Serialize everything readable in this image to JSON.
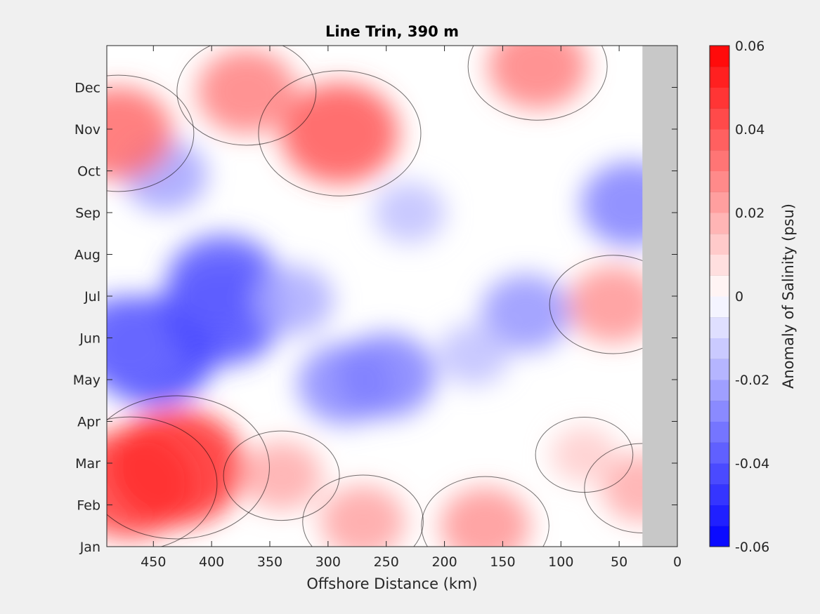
{
  "chart_data": {
    "type": "heatmap",
    "title": "Line Trin, 390 m",
    "xlabel": "Offshore Distance (km)",
    "ylabel": "",
    "x_reversed": true,
    "xlim": [
      0,
      490
    ],
    "x_ticks": [
      450,
      400,
      350,
      300,
      250,
      200,
      150,
      100,
      50,
      0
    ],
    "y_ticks": [
      "Jan",
      "Feb",
      "Mar",
      "Apr",
      "May",
      "Jun",
      "Jul",
      "Aug",
      "Sep",
      "Oct",
      "Nov",
      "Dec"
    ],
    "no_data_region_km": [
      0,
      30
    ],
    "colorbar": {
      "label": "Anomaly of Salinity (psu)",
      "range": [
        -0.06,
        0.06
      ],
      "ticks": [
        "0.06",
        "0.04",
        "0.02",
        "0",
        "-0.02",
        "-0.04",
        "-0.06"
      ],
      "levels": 24,
      "colormap": "blue-white-red",
      "neg_color": "#0000ff",
      "pos_color": "#ff0000",
      "zero_color": "#ffffff"
    },
    "features": [
      {
        "x": 450,
        "month": 4.7,
        "value": -0.045
      },
      {
        "x": 475,
        "month": 4.9,
        "value": -0.035
      },
      {
        "x": 390,
        "month": 5.6,
        "value": -0.042
      },
      {
        "x": 390,
        "month": 6.3,
        "value": -0.038
      },
      {
        "x": 285,
        "month": 3.9,
        "value": -0.028
      },
      {
        "x": 250,
        "month": 4.1,
        "value": -0.03
      },
      {
        "x": 130,
        "month": 5.6,
        "value": -0.025
      },
      {
        "x": 40,
        "month": 8.2,
        "value": -0.03
      },
      {
        "x": 440,
        "month": 8.9,
        "value": -0.022
      },
      {
        "x": 470,
        "month": 1.5,
        "value": 0.045
      },
      {
        "x": 430,
        "month": 1.9,
        "value": 0.05
      },
      {
        "x": 290,
        "month": 9.9,
        "value": 0.04
      },
      {
        "x": 480,
        "month": 9.9,
        "value": 0.035
      },
      {
        "x": 370,
        "month": 10.9,
        "value": 0.03
      },
      {
        "x": 120,
        "month": 11.5,
        "value": 0.03
      },
      {
        "x": 55,
        "month": 5.8,
        "value": 0.025
      },
      {
        "x": 165,
        "month": 0.5,
        "value": 0.025
      },
      {
        "x": 270,
        "month": 0.6,
        "value": 0.022
      },
      {
        "x": 340,
        "month": 1.7,
        "value": 0.02
      },
      {
        "x": 30,
        "month": 1.4,
        "value": 0.02
      },
      {
        "x": 330,
        "month": 5.9,
        "value": -0.02
      },
      {
        "x": 175,
        "month": 4.6,
        "value": -0.015
      },
      {
        "x": 230,
        "month": 8.0,
        "value": -0.015
      },
      {
        "x": 80,
        "month": 2.2,
        "value": 0.012
      }
    ]
  }
}
